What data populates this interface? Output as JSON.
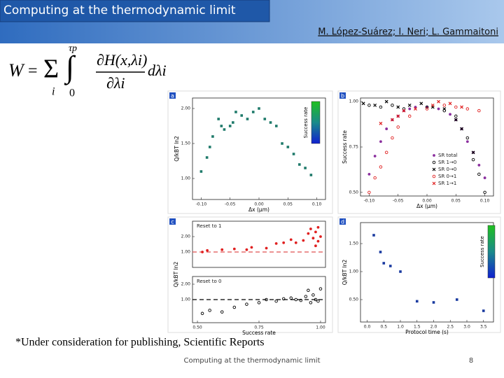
{
  "header": {
    "title": "Computing at the thermodynamic limit",
    "authors": "M. López-Suárez; I. Neri; L. Gammaitoni"
  },
  "formula": {
    "lhs": "W",
    "equals": "=",
    "sum": "Σ",
    "sum_index": "i",
    "integral": "∫",
    "upper": "τp",
    "lower": "0",
    "numerator": "∂H(x,λi)",
    "denominator": "∂λi",
    "differential": "dλi"
  },
  "chart_data": [
    {
      "type": "scatter",
      "panel": "a",
      "xlabel": "Δx (μm)",
      "ylabel": "Q/kBT ln2",
      "colorbar_label": "Success rate",
      "xlim": [
        -0.115,
        0.115
      ],
      "ylim": [
        0.7,
        2.15
      ],
      "xticks": [
        {
          "value": -0.1,
          "label": "-0.10"
        },
        -0.05,
        {
          "value": 0,
          "label": "0.00"
        },
        0.05,
        {
          "value": 0.1,
          "label": "0.10"
        }
      ],
      "yticks": [
        {
          "value": 1,
          "label": "1.00"
        },
        {
          "value": 1.5,
          "label": "1.50"
        },
        {
          "value": 2,
          "label": "2.00"
        }
      ],
      "series": [
        {
          "color": "#1f7a6a",
          "marker": "square",
          "x": [
            -0.1,
            -0.09,
            -0.085,
            -0.08,
            -0.07,
            -0.065,
            -0.06,
            -0.05,
            -0.045,
            -0.04,
            -0.03,
            -0.02,
            -0.01,
            0.0,
            0.01,
            0.02,
            0.03,
            0.04,
            0.05,
            0.06,
            0.07,
            0.08,
            0.09
          ],
          "values": [
            1.1,
            1.3,
            1.45,
            1.6,
            1.85,
            1.75,
            1.7,
            1.75,
            1.8,
            1.95,
            1.9,
            1.85,
            1.95,
            2.0,
            1.85,
            1.8,
            1.75,
            1.5,
            1.45,
            1.35,
            1.2,
            1.15,
            1.05
          ]
        }
      ]
    },
    {
      "type": "scatter",
      "panel": "b",
      "xlabel": "Δx (μm)",
      "ylabel": "Success rate",
      "xlim": [
        -0.115,
        0.115
      ],
      "ylim": [
        0.48,
        1.02
      ],
      "xticks": [
        {
          "value": -0.1,
          "label": "-0.10"
        },
        -0.05,
        {
          "value": 0,
          "label": "0.00"
        },
        0.05,
        {
          "value": 0.1,
          "label": "0.10"
        }
      ],
      "yticks": [
        {
          "value": 0.5,
          "label": "0.50"
        },
        0.75,
        {
          "value": 1,
          "label": "1.00"
        }
      ],
      "legend": "lower right",
      "series": [
        {
          "name": "SR total",
          "color": "#8b2f9e",
          "marker": "circle",
          "x": [
            -0.1,
            -0.09,
            -0.08,
            -0.07,
            -0.06,
            -0.05,
            -0.04,
            -0.03,
            -0.02,
            0.0,
            0.02,
            0.04,
            0.05,
            0.06,
            0.07,
            0.08,
            0.09,
            0.1
          ],
          "values": [
            0.6,
            0.7,
            0.78,
            0.85,
            0.9,
            0.92,
            0.95,
            0.96,
            0.97,
            0.97,
            0.96,
            0.93,
            0.9,
            0.85,
            0.78,
            0.72,
            0.65,
            0.58
          ]
        },
        {
          "name": "SR 1→0",
          "color": "#000000",
          "marker": "open-circle",
          "x": [
            -0.1,
            -0.08,
            -0.06,
            -0.04,
            0.0,
            0.03,
            0.05,
            0.07,
            0.08,
            0.09,
            0.1
          ],
          "values": [
            0.98,
            0.97,
            0.98,
            0.96,
            0.97,
            0.95,
            0.92,
            0.8,
            0.68,
            0.6,
            0.5
          ]
        },
        {
          "name": "SR 0→0",
          "color": "#000000",
          "marker": "x",
          "x": [
            -0.11,
            -0.09,
            -0.07,
            -0.05,
            -0.03,
            -0.01,
            0.01,
            0.03,
            0.05,
            0.06,
            0.08
          ],
          "values": [
            0.99,
            0.98,
            1.0,
            0.97,
            0.98,
            0.99,
            0.97,
            0.96,
            0.9,
            0.85,
            0.72
          ]
        },
        {
          "name": "SR 0→1",
          "color": "#e02020",
          "marker": "open-circle",
          "x": [
            -0.1,
            -0.09,
            -0.08,
            -0.07,
            -0.06,
            -0.05,
            -0.03,
            0.0,
            0.03,
            0.05,
            0.07,
            0.09
          ],
          "values": [
            0.5,
            0.58,
            0.64,
            0.72,
            0.8,
            0.86,
            0.92,
            0.96,
            0.98,
            0.97,
            0.96,
            0.95
          ]
        },
        {
          "name": "SR 1→1",
          "color": "#e02020",
          "marker": "x",
          "x": [
            -0.08,
            -0.06,
            -0.05,
            -0.04,
            -0.02,
            0.01,
            0.02,
            0.04,
            0.06
          ],
          "values": [
            0.88,
            0.9,
            0.92,
            0.95,
            0.96,
            0.98,
            1.0,
            0.99,
            0.97
          ]
        }
      ]
    },
    {
      "type": "scatter",
      "panel": "c",
      "annotation": "Reset to 1",
      "ylabel": "Q/kBT ln2",
      "xlim": [
        0.48,
        1.02
      ],
      "ylim": [
        0,
        3
      ],
      "yticks": [
        {
          "value": 1,
          "label": "1.00"
        },
        {
          "value": 2,
          "label": "2.00"
        }
      ],
      "hline": 1,
      "hline_color": "#e05050",
      "series": [
        {
          "color": "#e02020",
          "marker": "circle",
          "x": [
            0.52,
            0.54,
            0.6,
            0.65,
            0.7,
            0.72,
            0.78,
            0.82,
            0.85,
            0.88,
            0.9,
            0.93,
            0.95,
            0.96,
            0.97,
            0.98,
            0.99,
            1.0,
            0.99,
            0.98
          ],
          "values": [
            1.0,
            1.1,
            1.15,
            1.2,
            1.15,
            1.3,
            1.25,
            1.55,
            1.6,
            1.8,
            1.6,
            1.75,
            2.2,
            2.5,
            1.9,
            2.3,
            1.7,
            2.0,
            2.6,
            1.4
          ]
        }
      ]
    },
    {
      "type": "scatter",
      "annotation": "Reset to 0",
      "xlabel": "Success rate",
      "xlim": [
        0.48,
        1.02
      ],
      "ylim": [
        -0.5,
        2.5
      ],
      "xticks": [
        {
          "value": 0.5,
          "label": "0.50"
        },
        0.75,
        {
          "value": 1,
          "label": "1.00"
        }
      ],
      "yticks": [
        {
          "value": 1,
          "label": "1.00"
        },
        {
          "value": 2,
          "label": "2.00"
        }
      ],
      "hline": 1,
      "hline_color": "#000000",
      "series": [
        {
          "color": "#000000",
          "marker": "open-circle",
          "x": [
            0.52,
            0.55,
            0.6,
            0.65,
            0.7,
            0.75,
            0.78,
            0.82,
            0.85,
            0.88,
            0.9,
            0.92,
            0.94,
            0.95,
            0.96,
            0.97,
            0.98,
            0.99,
            1.0
          ],
          "values": [
            0.1,
            0.3,
            0.2,
            0.5,
            0.7,
            0.8,
            1.0,
            0.9,
            1.05,
            1.1,
            1.0,
            0.95,
            1.2,
            1.6,
            0.8,
            1.3,
            1.0,
            0.9,
            1.7
          ]
        }
      ]
    },
    {
      "type": "scatter",
      "panel": "d",
      "xlabel": "Protocol time (s)",
      "ylabel": "Q/kBT ln2",
      "colorbar_label": "Success rate",
      "xlim": [
        -0.2,
        3.8
      ],
      "ylim": [
        0.1,
        1.875
      ],
      "xticks": [
        {
          "value": 0,
          "label": "0.0"
        },
        0.5,
        {
          "value": 1,
          "label": "1.0"
        },
        1.5,
        {
          "value": 2,
          "label": "2.0"
        },
        2.5,
        {
          "value": 3,
          "label": "3.0"
        },
        3.5
      ],
      "yticks": [
        {
          "value": 0.5,
          "label": "0.50"
        },
        {
          "value": 1,
          "label": "1.00"
        },
        {
          "value": 1.5,
          "label": "1.50"
        }
      ],
      "series": [
        {
          "color": "#1a3aa0",
          "marker": "square",
          "x": [
            0.2,
            0.4,
            0.5,
            0.7,
            1.0,
            1.5,
            2.0,
            2.7,
            3.5
          ],
          "values": [
            1.65,
            1.35,
            1.15,
            1.1,
            1.0,
            0.47,
            0.45,
            0.5,
            0.3
          ]
        }
      ]
    }
  ],
  "footer": {
    "note": "*Under consideration for publishing, Scientific Reports",
    "center": "Computing at the thermodynamic limit",
    "page": "8"
  }
}
